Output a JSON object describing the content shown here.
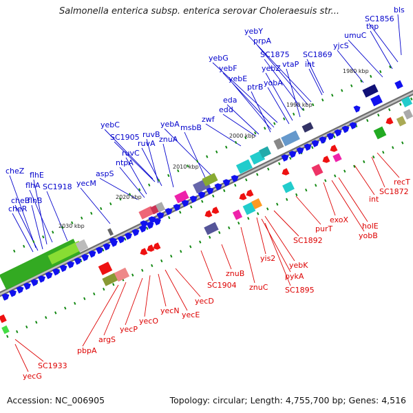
{
  "title": "Salmonella enterica subsp. enterica serovar Choleraesuis str...",
  "footer": {
    "accession": "Accession: NC_006905",
    "summary": "Topology: circular; Length: 4,755,700 bp; Genes: 4,516"
  },
  "colors": {
    "forward_label": "#0000cc",
    "reverse_label": "#dd0000",
    "backbone": "#8a8a8a",
    "tick": "#118811"
  },
  "scale_labels": [
    "1980 kbp",
    "1990 kbp",
    "2000 kbp",
    "2010 kbp",
    "2020 kbp",
    "2030 kbp"
  ],
  "forward_genes": [
    "bls",
    "SC1856",
    "tnp",
    "umuC",
    "yjcS",
    "SC1869",
    "int",
    "yebY",
    "prpA",
    "SC1875",
    "vtaP",
    "yebZ",
    "yobA",
    "yebG",
    "yebF",
    "yebE",
    "ptrB",
    "eda",
    "edd",
    "zwf",
    "yebA",
    "msbB",
    "yebC",
    "SC1905",
    "ruvB",
    "ruvA",
    "znuA",
    "ruvC",
    "ntpA",
    "aspS",
    "yecM",
    "cheZ",
    "flhE",
    "flhA",
    "SC1918",
    "cheB",
    "flhB",
    "cheR"
  ],
  "reverse_genes": [
    "recT",
    "SC1872",
    "int",
    "exoX",
    "holE",
    "yobB",
    "purT",
    "SC1892",
    "yis2",
    "yebK",
    "pykA",
    "SC1895",
    "znuB",
    "SC1904",
    "znuC",
    "yecD",
    "yecE",
    "yecN",
    "yecO",
    "yecP",
    "argS",
    "pbpA",
    "SC1933",
    "yecG"
  ]
}
